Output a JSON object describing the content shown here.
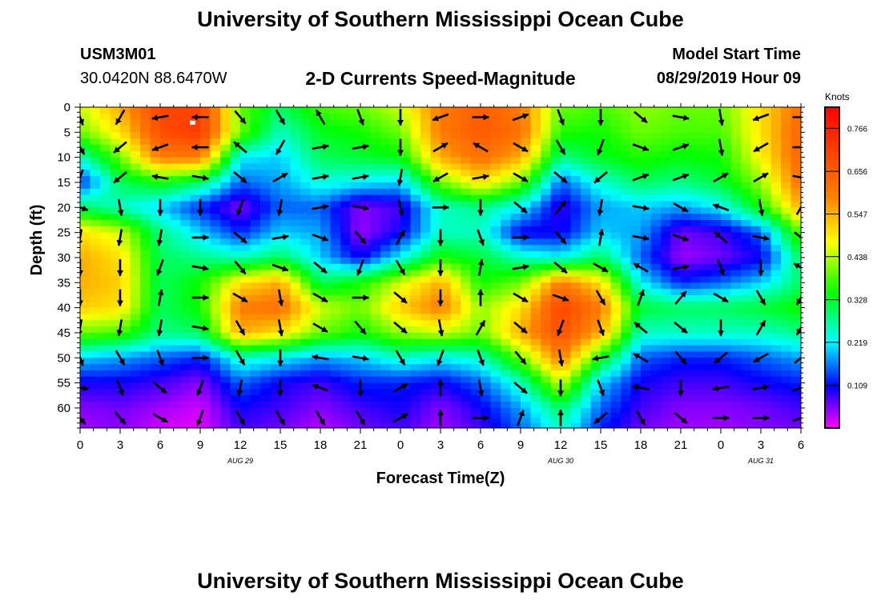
{
  "header": {
    "title": "University of Southern Mississippi Ocean Cube",
    "station_id": "USM3M01",
    "coordinates": "30.0420N 88.6470W",
    "plot_title": "2-D Currents Speed-Magnitude",
    "model_start_label": "Model Start Time",
    "model_start_value": "08/29/2019 Hour 09",
    "footer_title": "University of Southern Mississippi Ocean Cube"
  },
  "chart_data": {
    "type": "heatmap",
    "title": "2-D Currents Speed-Magnitude",
    "xlabel": "Forecast Time(Z)",
    "ylabel": "Depth (ft)",
    "x_tick_labels": [
      "0",
      "3",
      "6",
      "9",
      "12",
      "15",
      "18",
      "21",
      "0",
      "3",
      "6",
      "9",
      "12",
      "15",
      "18",
      "21",
      "0",
      "3",
      "6"
    ],
    "x_range_hours": [
      0,
      54
    ],
    "date_labels": [
      {
        "text": "AUG 29",
        "at_hour": 12
      },
      {
        "text": "AUG 30",
        "at_hour": 36
      },
      {
        "text": "AUG 31",
        "at_hour": 51
      }
    ],
    "y_ticks": [
      0,
      5,
      10,
      15,
      20,
      25,
      30,
      35,
      40,
      45,
      50,
      55,
      60
    ],
    "y_range_ft": [
      0,
      64
    ],
    "colorbar": {
      "unit": "Knots",
      "range": [
        0,
        0.82
      ],
      "tick_labels": [
        "0.766",
        "0.656",
        "0.547",
        "0.438",
        "0.328",
        "0.219",
        "0.109"
      ],
      "tick_values": [
        0.766,
        0.656,
        0.547,
        0.438,
        0.328,
        0.219,
        0.109
      ],
      "colors": [
        "#ff00ff",
        "#0000ff",
        "#00ffff",
        "#00ff00",
        "#ffff00",
        "#ff8000",
        "#ff0000"
      ]
    },
    "grid": false,
    "legend_position": "right",
    "speed_grid_knots": {
      "times_hours": [
        0,
        3,
        6,
        9,
        12,
        15,
        18,
        21,
        24,
        27,
        30,
        33,
        36,
        39,
        42,
        45,
        48,
        51,
        54
      ],
      "depths_ft": [
        0,
        5,
        10,
        15,
        20,
        25,
        30,
        35,
        40,
        45,
        50,
        55,
        60,
        64
      ],
      "rows": [
        [
          0.45,
          0.55,
          0.7,
          0.7,
          0.4,
          0.3,
          0.38,
          0.4,
          0.45,
          0.6,
          0.65,
          0.6,
          0.4,
          0.38,
          0.42,
          0.4,
          0.4,
          0.5,
          0.62
        ],
        [
          0.4,
          0.5,
          0.68,
          0.72,
          0.4,
          0.25,
          0.33,
          0.35,
          0.4,
          0.6,
          0.66,
          0.62,
          0.36,
          0.35,
          0.4,
          0.38,
          0.38,
          0.5,
          0.64
        ],
        [
          0.25,
          0.4,
          0.6,
          0.6,
          0.22,
          0.2,
          0.3,
          0.32,
          0.34,
          0.55,
          0.62,
          0.55,
          0.28,
          0.33,
          0.36,
          0.34,
          0.35,
          0.48,
          0.64
        ],
        [
          0.12,
          0.3,
          0.35,
          0.3,
          0.15,
          0.18,
          0.24,
          0.22,
          0.2,
          0.4,
          0.5,
          0.4,
          0.15,
          0.24,
          0.3,
          0.28,
          0.32,
          0.42,
          0.62
        ],
        [
          0.3,
          0.25,
          0.2,
          0.12,
          0.05,
          0.15,
          0.15,
          0.05,
          0.08,
          0.25,
          0.28,
          0.22,
          0.08,
          0.18,
          0.2,
          0.18,
          0.22,
          0.35,
          0.55
        ],
        [
          0.5,
          0.45,
          0.28,
          0.2,
          0.12,
          0.2,
          0.18,
          0.04,
          0.1,
          0.25,
          0.25,
          0.1,
          0.1,
          0.2,
          0.18,
          0.06,
          0.08,
          0.15,
          0.4
        ],
        [
          0.55,
          0.5,
          0.3,
          0.28,
          0.25,
          0.3,
          0.2,
          0.1,
          0.22,
          0.35,
          0.32,
          0.25,
          0.22,
          0.3,
          0.15,
          0.04,
          0.06,
          0.1,
          0.3
        ],
        [
          0.55,
          0.52,
          0.3,
          0.35,
          0.5,
          0.55,
          0.3,
          0.35,
          0.45,
          0.55,
          0.35,
          0.4,
          0.6,
          0.5,
          0.22,
          0.12,
          0.15,
          0.2,
          0.3
        ],
        [
          0.52,
          0.5,
          0.3,
          0.35,
          0.6,
          0.62,
          0.45,
          0.4,
          0.52,
          0.6,
          0.42,
          0.5,
          0.7,
          0.6,
          0.32,
          0.3,
          0.3,
          0.32,
          0.35
        ],
        [
          0.4,
          0.38,
          0.28,
          0.3,
          0.55,
          0.5,
          0.4,
          0.35,
          0.42,
          0.45,
          0.4,
          0.55,
          0.68,
          0.55,
          0.25,
          0.25,
          0.25,
          0.25,
          0.28
        ],
        [
          0.2,
          0.18,
          0.15,
          0.12,
          0.25,
          0.22,
          0.18,
          0.2,
          0.25,
          0.22,
          0.25,
          0.4,
          0.6,
          0.35,
          0.15,
          0.12,
          0.12,
          0.15,
          0.18
        ],
        [
          0.1,
          0.1,
          0.08,
          0.05,
          0.15,
          0.1,
          0.08,
          0.12,
          0.12,
          0.1,
          0.15,
          0.25,
          0.45,
          0.2,
          0.1,
          0.08,
          0.08,
          0.1,
          0.12
        ],
        [
          0.05,
          0.06,
          0.04,
          0.02,
          0.1,
          0.08,
          0.05,
          0.08,
          0.1,
          0.05,
          0.1,
          0.18,
          0.3,
          0.15,
          0.08,
          0.05,
          0.05,
          0.06,
          0.08
        ],
        [
          0.04,
          0.05,
          0.02,
          0.01,
          0.08,
          0.06,
          0.03,
          0.06,
          0.08,
          0.04,
          0.08,
          0.15,
          0.25,
          0.12,
          0.06,
          0.04,
          0.04,
          0.05,
          0.06
        ]
      ]
    },
    "current_direction_arrows": {
      "note_unit": "direction in degrees, 0 = pointing up, clockwise",
      "depths_ft": [
        2,
        8,
        14,
        20,
        26,
        32,
        38,
        44,
        50,
        56,
        62
      ],
      "times_hours": [
        0,
        3,
        6,
        9,
        12,
        15,
        18,
        21,
        24,
        27,
        30,
        33,
        36,
        39,
        42,
        45,
        48,
        51,
        54
      ],
      "directions_deg": [
        [
          160,
          210,
          260,
          270,
          140,
          150,
          330,
          160,
          180,
          250,
          90,
          70,
          160,
          180,
          130,
          100,
          170,
          250,
          90
        ],
        [
          150,
          230,
          250,
          270,
          310,
          210,
          80,
          80,
          180,
          60,
          300,
          120,
          150,
          200,
          110,
          70,
          170,
          240,
          90
        ],
        [
          200,
          230,
          280,
          100,
          130,
          60,
          80,
          80,
          190,
          240,
          80,
          120,
          130,
          230,
          70,
          70,
          60,
          60,
          100
        ],
        [
          110,
          170,
          180,
          180,
          200,
          190,
          80,
          100,
          170,
          90,
          180,
          130,
          40,
          190,
          100,
          120,
          290,
          170,
          30
        ],
        [
          190,
          190,
          190,
          90,
          130,
          80,
          110,
          140,
          30,
          180,
          160,
          90,
          140,
          10,
          100,
          110,
          310,
          100,
          130
        ],
        [
          180,
          180,
          200,
          100,
          140,
          110,
          130,
          200,
          150,
          180,
          10,
          80,
          130,
          120,
          300,
          80,
          160,
          180,
          300
        ],
        [
          180,
          180,
          10,
          90,
          120,
          170,
          120,
          90,
          130,
          180,
          0,
          120,
          110,
          150,
          20,
          40,
          120,
          150,
          210
        ],
        [
          190,
          190,
          190,
          100,
          150,
          170,
          120,
          140,
          130,
          170,
          30,
          130,
          200,
          160,
          310,
          130,
          180,
          30,
          210
        ],
        [
          160,
          150,
          160,
          90,
          150,
          180,
          280,
          100,
          150,
          200,
          160,
          140,
          170,
          260,
          300,
          140,
          230,
          240,
          50
        ],
        [
          100,
          160,
          130,
          200,
          190,
          180,
          290,
          180,
          60,
          0,
          170,
          130,
          180,
          160,
          280,
          180,
          260,
          80,
          70
        ],
        [
          140,
          140,
          120,
          200,
          150,
          150,
          150,
          150,
          60,
          0,
          90,
          20,
          0,
          230,
          150,
          130,
          90,
          90,
          70
        ]
      ]
    },
    "annotation_marker_hour": 8.4,
    "annotation_marker_depth_ft": 3
  }
}
